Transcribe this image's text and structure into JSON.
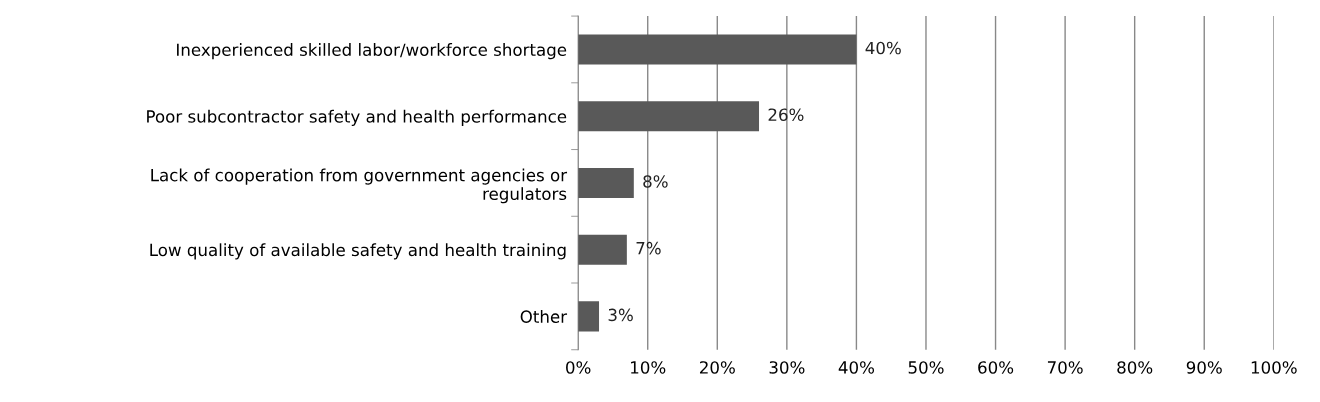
{
  "chart_data": {
    "type": "bar",
    "orientation": "horizontal",
    "categories": [
      "Inexperienced skilled labor/workforce shortage",
      "Poor subcontractor safety and health performance",
      "Lack of cooperation from government agencies or\nregulators",
      "Low quality of available safety and health training",
      "Other"
    ],
    "values": [
      40,
      26,
      8,
      7,
      3
    ],
    "value_labels": [
      "40%",
      "26%",
      "8%",
      "7%",
      "3%"
    ],
    "color": "#595959",
    "xlim": [
      0,
      100
    ],
    "xticks": [
      {
        "value": 0,
        "label": "0%"
      },
      {
        "value": 10,
        "label": "10%"
      },
      {
        "value": 20,
        "label": "20%"
      },
      {
        "value": 30,
        "label": "30%"
      },
      {
        "value": 40,
        "label": "40%"
      },
      {
        "value": 50,
        "label": "50%"
      },
      {
        "value": 60,
        "label": "60%"
      },
      {
        "value": 70,
        "label": "70%"
      },
      {
        "value": 80,
        "label": "80%"
      },
      {
        "value": 90,
        "label": "90%"
      },
      {
        "value": 100,
        "label": "100%"
      }
    ],
    "grid": "x",
    "legend": false
  }
}
